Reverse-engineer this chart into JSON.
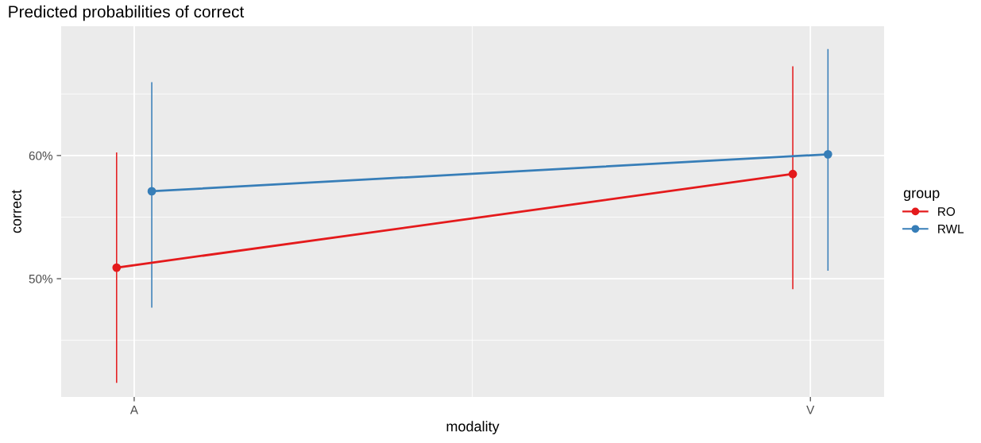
{
  "chart_data": {
    "type": "line",
    "title": "Predicted probabilities of correct",
    "xlabel": "modality",
    "ylabel": "correct",
    "legend_title": "group",
    "categories": [
      "A",
      "V"
    ],
    "series": [
      {
        "name": "RO",
        "color": "#e41a1c",
        "values": [
          50.9,
          58.5
        ],
        "errors": [
          [
            41.6,
            60.2
          ],
          [
            49.2,
            67.2
          ]
        ]
      },
      {
        "name": "RWL",
        "color": "#377eb8",
        "values": [
          57.1,
          60.1
        ],
        "errors": [
          [
            47.7,
            65.9
          ],
          [
            50.7,
            68.6
          ]
        ]
      }
    ],
    "ylim": [
      40.4,
      70.5
    ],
    "yticks": [
      {
        "value": 45,
        "label": null
      },
      {
        "value": 50,
        "label": "50%"
      },
      {
        "value": 55,
        "label": null
      },
      {
        "value": 60,
        "label": "60%"
      },
      {
        "value": 65,
        "label": null
      }
    ],
    "grid": true,
    "legend": "right",
    "marker": "circle",
    "line_style": "solid"
  }
}
